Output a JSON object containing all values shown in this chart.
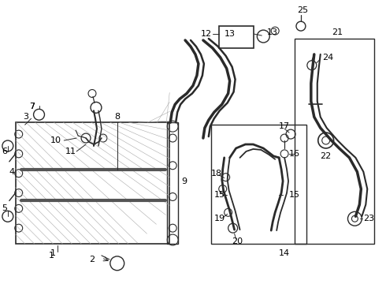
{
  "bg_color": "#ffffff",
  "line_color": "#2a2a2a",
  "lw": 1.0
}
